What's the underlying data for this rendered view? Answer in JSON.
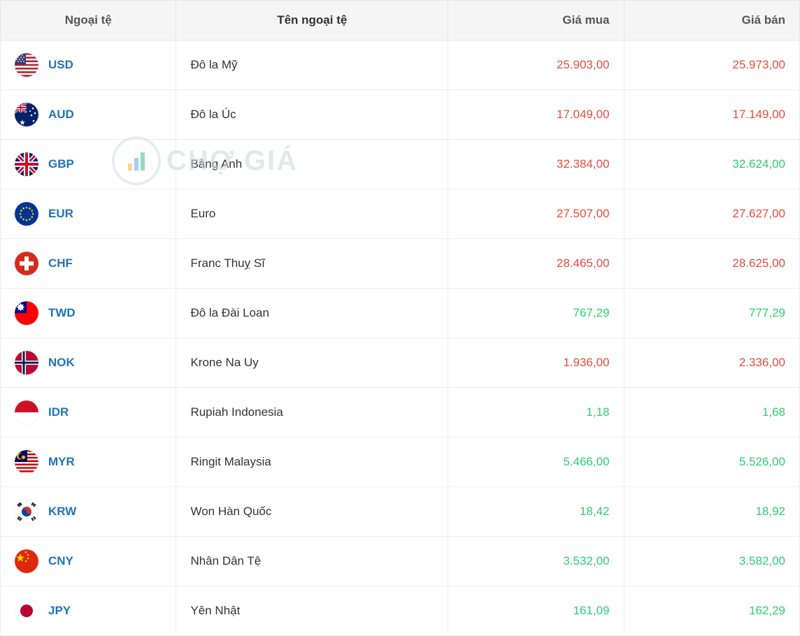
{
  "watermark_text": "CHỢ GIÁ",
  "colors": {
    "header_bg": "#f5f5f5",
    "header_text": "#555555",
    "border": "#eeeeee",
    "link": "#1e73be",
    "price_up": "#e74c3c",
    "price_down": "#2ecc71",
    "body_text": "#333333"
  },
  "columns": [
    {
      "key": "code",
      "label": "Ngoại tệ"
    },
    {
      "key": "name",
      "label": "Tên ngoại tệ"
    },
    {
      "key": "buy",
      "label": "Giá mua"
    },
    {
      "key": "sell",
      "label": "Giá bán"
    }
  ],
  "rows": [
    {
      "code": "USD",
      "name": "Đô la Mỹ",
      "buy": "25.903,00",
      "buy_trend": "up",
      "sell": "25.973,00",
      "sell_trend": "up",
      "flag": "us"
    },
    {
      "code": "AUD",
      "name": "Đô la Úc",
      "buy": "17.049,00",
      "buy_trend": "up",
      "sell": "17.149,00",
      "sell_trend": "up",
      "flag": "au"
    },
    {
      "code": "GBP",
      "name": "Bảng Anh",
      "buy": "32.384,00",
      "buy_trend": "up",
      "sell": "32.624,00",
      "sell_trend": "down",
      "flag": "gb"
    },
    {
      "code": "EUR",
      "name": "Euro",
      "buy": "27.507,00",
      "buy_trend": "up",
      "sell": "27.627,00",
      "sell_trend": "up",
      "flag": "eu"
    },
    {
      "code": "CHF",
      "name": "Franc Thuỵ Sĩ",
      "buy": "28.465,00",
      "buy_trend": "up",
      "sell": "28.625,00",
      "sell_trend": "up",
      "flag": "ch"
    },
    {
      "code": "TWD",
      "name": "Đô la Đài Loan",
      "buy": "767,29",
      "buy_trend": "down",
      "sell": "777,29",
      "sell_trend": "down",
      "flag": "tw"
    },
    {
      "code": "NOK",
      "name": "Krone Na Uy",
      "buy": "1.936,00",
      "buy_trend": "up",
      "sell": "2.336,00",
      "sell_trend": "up",
      "flag": "no"
    },
    {
      "code": "IDR",
      "name": "Rupiah Indonesia",
      "buy": "1,18",
      "buy_trend": "down",
      "sell": "1,68",
      "sell_trend": "down",
      "flag": "id"
    },
    {
      "code": "MYR",
      "name": "Ringit Malaysia",
      "buy": "5.466,00",
      "buy_trend": "down",
      "sell": "5.526,00",
      "sell_trend": "down",
      "flag": "my"
    },
    {
      "code": "KRW",
      "name": "Won Hàn Quốc",
      "buy": "18,42",
      "buy_trend": "down",
      "sell": "18,92",
      "sell_trend": "down",
      "flag": "kr"
    },
    {
      "code": "CNY",
      "name": "Nhân Dân Tệ",
      "buy": "3.532,00",
      "buy_trend": "down",
      "sell": "3.582,00",
      "sell_trend": "down",
      "flag": "cn"
    },
    {
      "code": "JPY",
      "name": "Yên Nhật",
      "buy": "161,09",
      "buy_trend": "down",
      "sell": "162,29",
      "sell_trend": "down",
      "flag": "jp"
    }
  ]
}
